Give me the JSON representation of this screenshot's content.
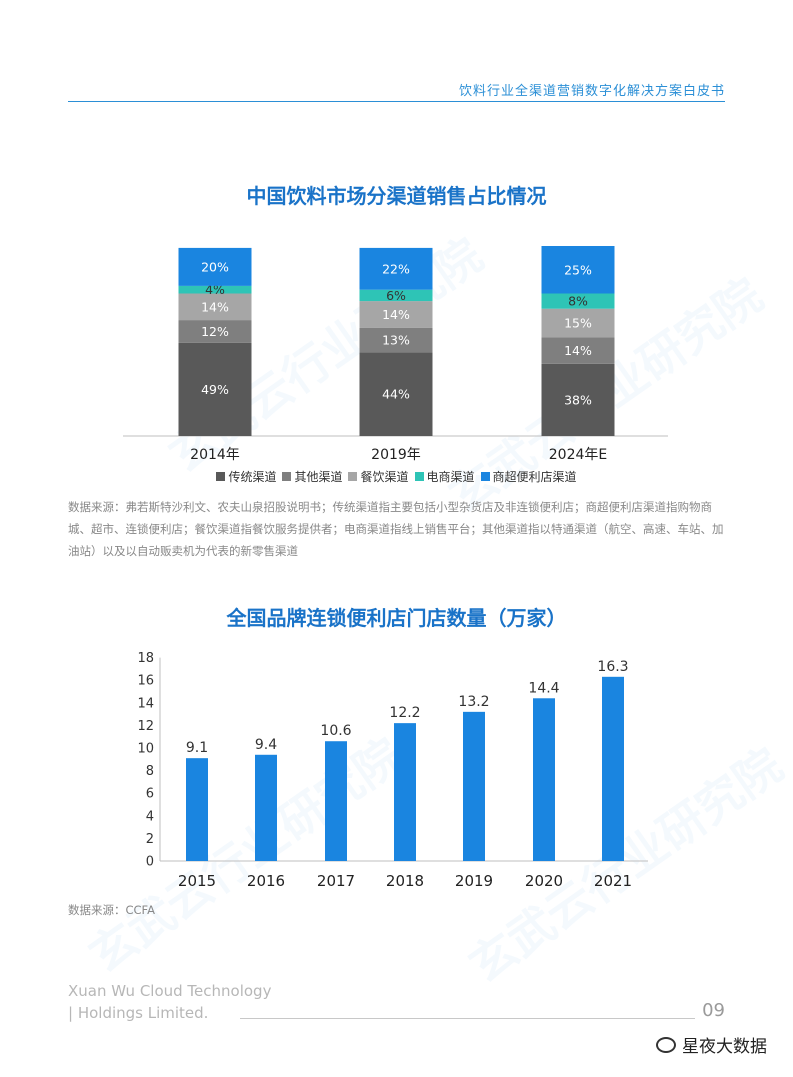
{
  "header": {
    "title": "饮料行业全渠道营销数字化解决方案白皮书"
  },
  "chart1": {
    "title": "中国饮料市场分渠道销售占比情况",
    "note": "数据来源：弗若斯特沙利文、农夫山泉招股说明书；传统渠道指主要包括小型杂货店及非连锁便利店；商超便利店渠道指购物商城、超市、连锁便利店；餐饮渠道指餐饮服务提供者；电商渠道指线上销售平台；其他渠道指以特通渠道（航空、高速、车站、加油站）以及以自动贩卖机为代表的新零售渠道"
  },
  "chart2": {
    "title": "全国品牌连锁便利店门店数量（万家）",
    "note": "数据来源：CCFA"
  },
  "footer": {
    "company_line1": "Xuan Wu Cloud Technology",
    "company_line2": "| Holdings Limited.",
    "page_number": "09",
    "wechat_name": "星夜大数据"
  },
  "chart_data": [
    {
      "type": "bar",
      "stacked": true,
      "categories": [
        "2014年",
        "2019年",
        "2024年E"
      ],
      "series": [
        {
          "name": "传统渠道",
          "color": "#595959",
          "values": [
            49,
            44,
            38
          ]
        },
        {
          "name": "其他渠道",
          "color": "#7f7f7f",
          "values": [
            12,
            13,
            14
          ]
        },
        {
          "name": "餐饮渠道",
          "color": "#a6a6a6",
          "values": [
            14,
            14,
            15
          ]
        },
        {
          "name": "电商渠道",
          "color": "#2ec4b6",
          "values": [
            4,
            6,
            8
          ]
        },
        {
          "name": "商超便利店渠道",
          "color": "#1a85e0",
          "values": [
            20,
            22,
            25
          ]
        }
      ],
      "value_suffix": "%",
      "legend": "bottom"
    },
    {
      "type": "bar",
      "categories": [
        "2015",
        "2016",
        "2017",
        "2018",
        "2019",
        "2020",
        "2021"
      ],
      "values": [
        9.1,
        9.4,
        10.6,
        12.2,
        13.2,
        14.4,
        16.3
      ],
      "yticks": [
        "0",
        "2",
        "4",
        "6",
        "8",
        "10",
        "12",
        "14",
        "16",
        "18"
      ],
      "ylim": [
        0,
        18
      ],
      "color": "#1a85e0"
    }
  ]
}
